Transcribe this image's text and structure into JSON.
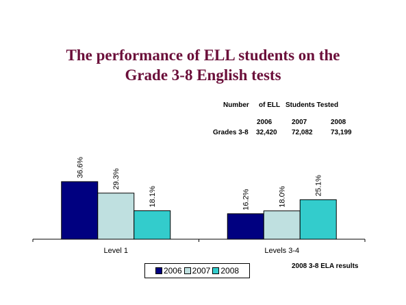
{
  "title": {
    "line1": "The performance of ELL students on the",
    "line2": "Grade 3-8 English tests"
  },
  "tested_table": {
    "heading": [
      "Number",
      "of ELL",
      "Students Tested"
    ],
    "years": [
      "2006",
      "2007",
      "2008"
    ],
    "row_label": "Grades 3-8",
    "values": [
      "32,420",
      "72,082",
      "73,199"
    ]
  },
  "chart_data": {
    "type": "bar",
    "categories": [
      "Level 1",
      "Levels 3-4"
    ],
    "series": [
      {
        "name": "2006",
        "values": [
          36.6,
          16.2
        ],
        "labels": [
          "36.6%",
          "16.2%"
        ],
        "color": "#000080"
      },
      {
        "name": "2007",
        "values": [
          29.3,
          18.0
        ],
        "labels": [
          "29.3%",
          "18.0%"
        ],
        "color": "#bfe0e0"
      },
      {
        "name": "2008",
        "values": [
          18.1,
          25.1
        ],
        "labels": [
          "18.1%",
          "25.1%"
        ],
        "color": "#33cccc"
      }
    ],
    "ylim": [
      0,
      40
    ],
    "grid": false,
    "legend_position": "bottom"
  },
  "source_note": "2008 3-8 ELA results"
}
